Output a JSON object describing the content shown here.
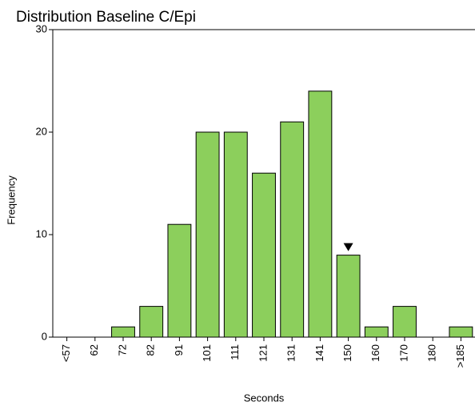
{
  "chart_data": {
    "type": "bar",
    "title": "Distribution Baseline C/Epi",
    "x_label": "Seconds",
    "y_label": "Frequency",
    "categories": [
      "<57",
      "62",
      "72",
      "82",
      "91",
      "101",
      "111",
      "121",
      "131",
      "141",
      "150",
      "160",
      "170",
      "180",
      ">185"
    ],
    "values": [
      0,
      0,
      1,
      3,
      11,
      20,
      20,
      16,
      21,
      24,
      8,
      1,
      3,
      0,
      1
    ],
    "color": "#8ccf5c",
    "ylim": [
      0,
      30
    ],
    "yticks": [
      0,
      10,
      20,
      30
    ]
  }
}
